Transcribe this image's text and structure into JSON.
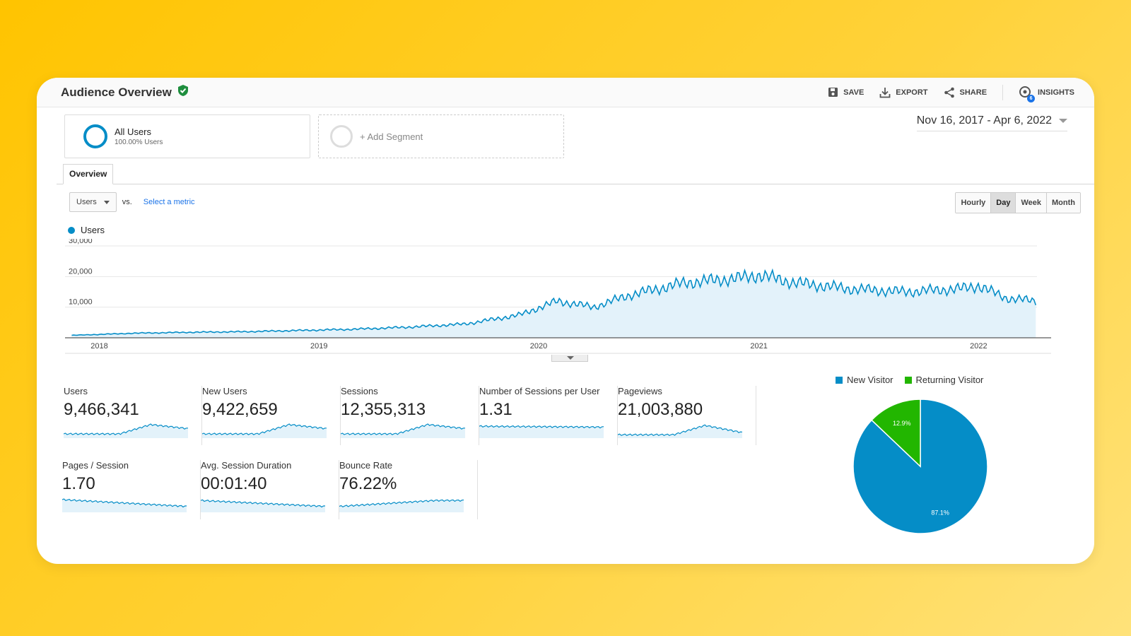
{
  "header": {
    "title": "Audience Overview",
    "actions": {
      "save": "SAVE",
      "export": "EXPORT",
      "share": "SHARE",
      "insights": "INSIGHTS",
      "insights_count": "6"
    }
  },
  "segments": {
    "all_users": {
      "title": "All Users",
      "subtitle": "100.00% Users"
    },
    "add_segment": "+ Add Segment"
  },
  "date_range": "Nov 16, 2017 - Apr 6, 2022",
  "tabs": [
    "Overview"
  ],
  "metric_selector": {
    "selected": "Users",
    "vs": "vs.",
    "select_metric": "Select a metric"
  },
  "granularity": {
    "options": [
      "Hourly",
      "Day",
      "Week",
      "Month"
    ],
    "selected": "Day"
  },
  "colors": {
    "series": "#058dc7",
    "new_visitor": "#058dc7",
    "returning_visitor": "#22b600"
  },
  "chart_data": [
    {
      "type": "area",
      "series": [
        {
          "name": "Users",
          "x": [
            "2017-11-16",
            "2018-03-01",
            "2018-06-01",
            "2018-09-01",
            "2018-12-01",
            "2019-03-01",
            "2019-06-01",
            "2019-09-01",
            "2019-12-01",
            "2020-02-01",
            "2020-04-01",
            "2020-06-01",
            "2020-09-01",
            "2020-12-01",
            "2021-01-01",
            "2021-03-01",
            "2021-06-01",
            "2021-09-01",
            "2021-12-01",
            "2022-01-01",
            "2022-02-15",
            "2022-04-06"
          ],
          "values": [
            800,
            1500,
            1800,
            2000,
            2400,
            2800,
            3500,
            4500,
            7500,
            12000,
            10000,
            14000,
            18000,
            19500,
            20500,
            18000,
            16000,
            15000,
            16000,
            17000,
            13000,
            12000
          ]
        }
      ],
      "ylim": [
        0,
        30000
      ],
      "yticks": [
        "30,000",
        "20,000",
        "10,000"
      ],
      "xticks": [
        "2018",
        "2019",
        "2020",
        "2021",
        "2022"
      ]
    },
    {
      "type": "pie",
      "categories": [
        "New Visitor",
        "Returning Visitor"
      ],
      "values": [
        87.1,
        12.9
      ],
      "labels": [
        "87.1%",
        "12.9%"
      ]
    }
  ],
  "metrics": [
    {
      "label": "Users",
      "value": "9,466,341"
    },
    {
      "label": "New Users",
      "value": "9,422,659"
    },
    {
      "label": "Sessions",
      "value": "12,355,313"
    },
    {
      "label": "Number of Sessions per User",
      "value": "1.31"
    },
    {
      "label": "Pageviews",
      "value": "21,003,880"
    },
    {
      "label": "Pages / Session",
      "value": "1.70"
    },
    {
      "label": "Avg. Session Duration",
      "value": "00:01:40"
    },
    {
      "label": "Bounce Rate",
      "value": "76.22%"
    }
  ]
}
